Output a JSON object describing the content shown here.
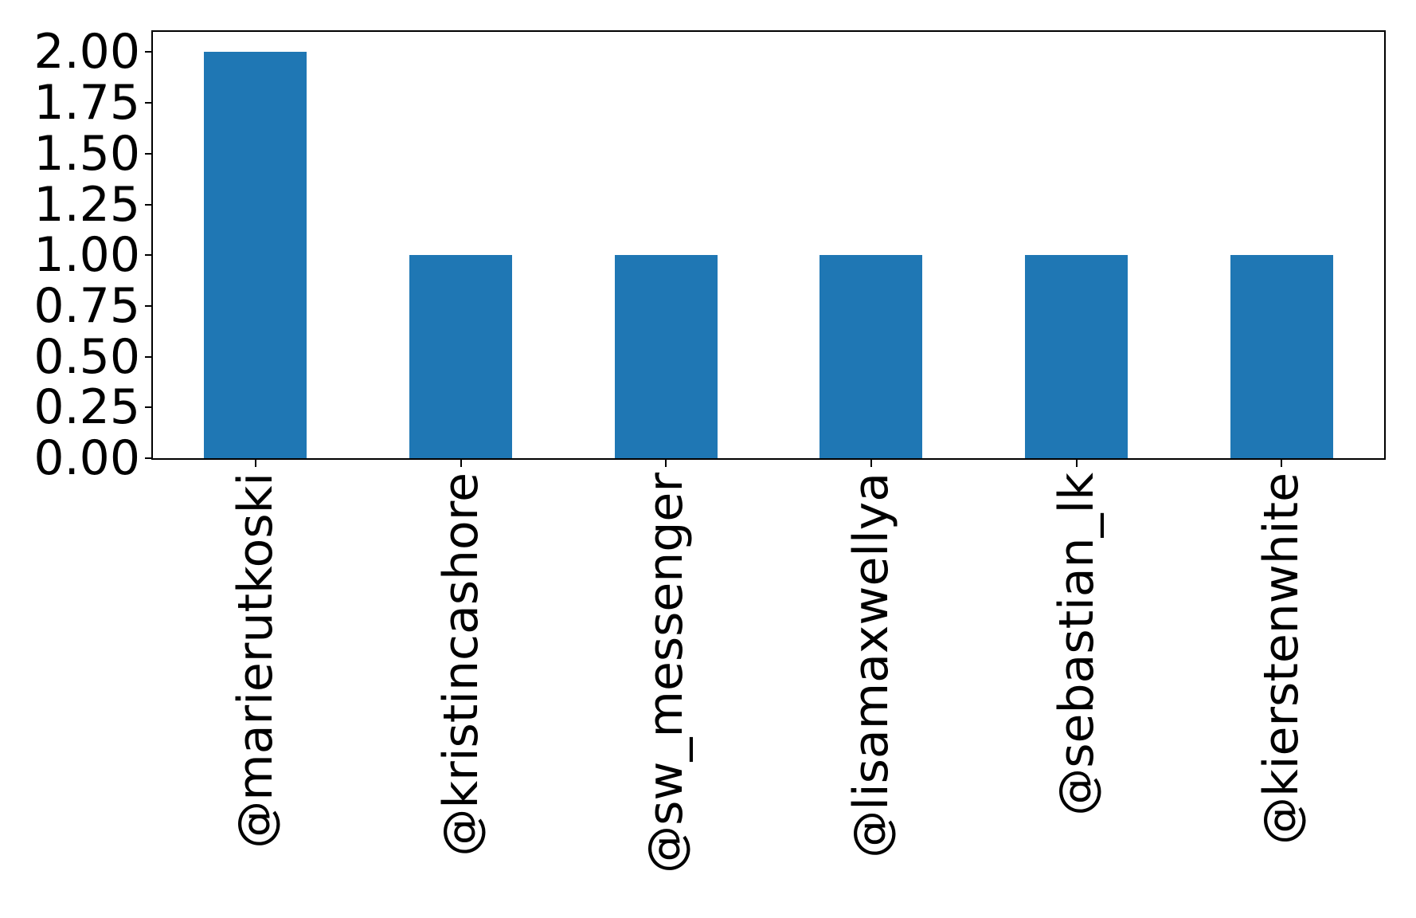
{
  "chart_data": {
    "type": "bar",
    "title": "",
    "xlabel": "",
    "ylabel": "",
    "categories": [
      "@marierutkoski",
      "@kristincashore",
      "@sw_messenger",
      "@lisamaxwellya",
      "@sebastian_lk",
      "@kierstenwhite"
    ],
    "values": [
      2,
      1,
      1,
      1,
      1,
      1
    ],
    "ylim": [
      0,
      2.1
    ],
    "ytick_values": [
      0,
      0.25,
      0.5,
      0.75,
      1.0,
      1.25,
      1.5,
      1.75,
      2.0
    ],
    "ytick_labels": [
      "0.00",
      "0.25",
      "0.50",
      "0.75",
      "1.00",
      "1.25",
      "1.50",
      "1.75",
      "2.00"
    ],
    "bar_color": "#1f77b4",
    "axis_color": "#000000",
    "text_color": "#000000",
    "background_color": "#ffffff",
    "bar_width_fraction": 0.5,
    "x_tick_rotation_deg": 90,
    "grid": false,
    "legend": "none"
  }
}
